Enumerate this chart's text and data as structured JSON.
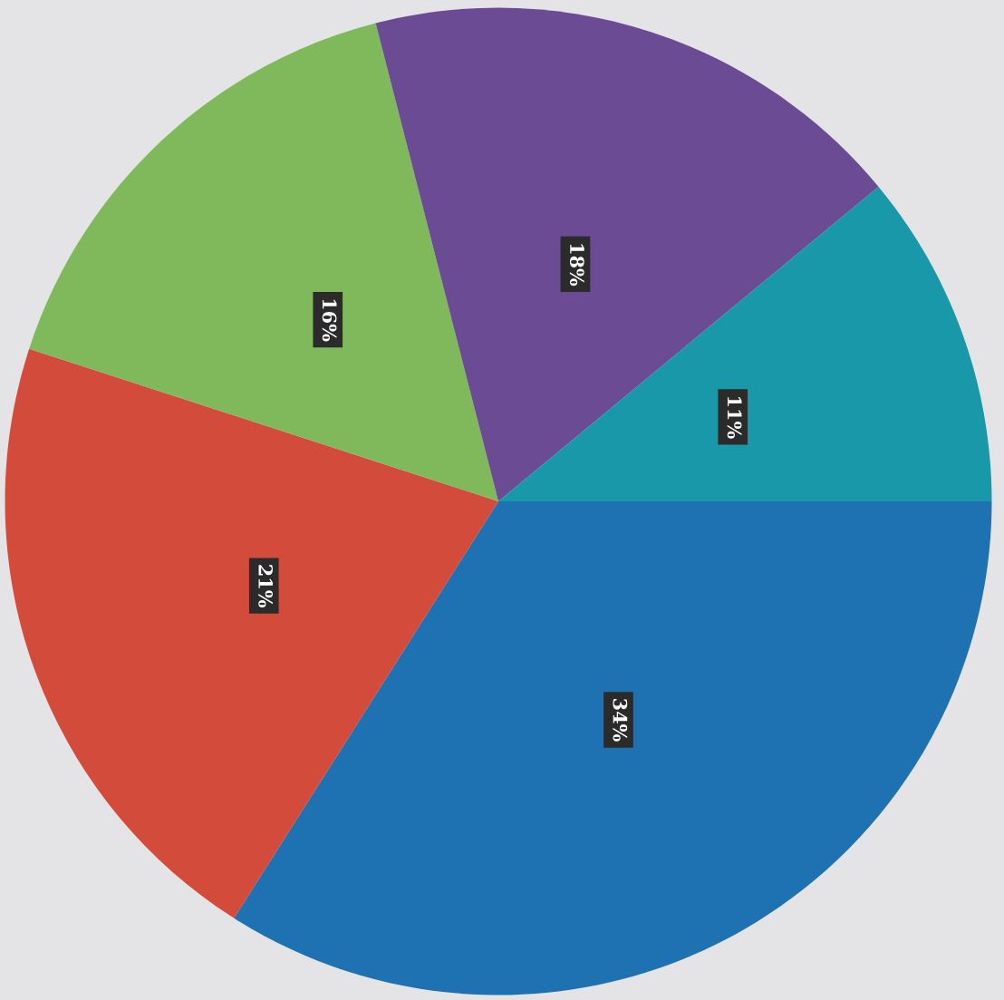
{
  "chart_data": {
    "type": "pie",
    "categories": [
      null,
      null,
      null,
      null,
      null
    ],
    "values": [
      34,
      21,
      16,
      18,
      11
    ],
    "colors": [
      "#1f72b2",
      "#d24b3b",
      "#7fb95c",
      "#6a4b94",
      "#1898a8"
    ],
    "value_labels": [
      "34%",
      "21%",
      "16%",
      "18%",
      "11%"
    ]
  }
}
